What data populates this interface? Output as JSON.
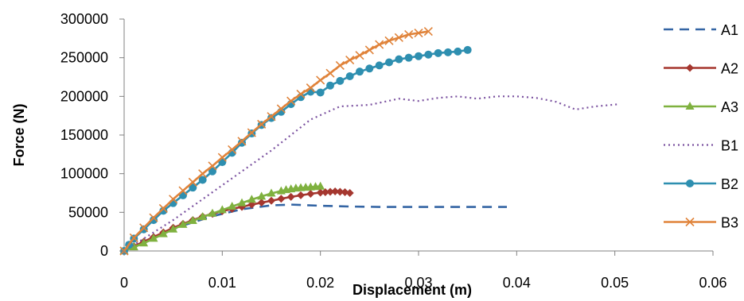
{
  "chart_data": {
    "type": "line",
    "title": "",
    "xlabel": "Displacement (m)",
    "ylabel": "Force (N)",
    "xlim": [
      0,
      0.06
    ],
    "ylim": [
      0,
      300000
    ],
    "x_ticks": [
      0,
      0.01,
      0.02,
      0.03,
      0.04,
      0.05,
      0.06
    ],
    "x_tick_labels": [
      "0",
      "0.01",
      "0.02",
      "0.03",
      "0.04",
      "0.05",
      "0.06"
    ],
    "y_ticks": [
      0,
      50000,
      100000,
      150000,
      200000,
      250000,
      300000
    ],
    "y_tick_labels": [
      "0",
      "50000",
      "100000",
      "150000",
      "200000",
      "250000",
      "300000"
    ],
    "grid": false,
    "legend_position": "right",
    "series": [
      {
        "name": "A1",
        "color": "#3465a4",
        "dash": "dashed",
        "marker": "none",
        "x": [
          0,
          0.003,
          0.006,
          0.009,
          0.012,
          0.015,
          0.017,
          0.02,
          0.023,
          0.026,
          0.03,
          0.035,
          0.039
        ],
        "y": [
          0,
          18000,
          33000,
          45000,
          54000,
          59000,
          60000,
          58500,
          57500,
          57000,
          57000,
          57000,
          57000
        ]
      },
      {
        "name": "A2",
        "color": "#a5372f",
        "dash": "solid",
        "marker": "diamond",
        "x": [
          0,
          0.001,
          0.002,
          0.003,
          0.004,
          0.005,
          0.006,
          0.007,
          0.008,
          0.009,
          0.01,
          0.011,
          0.012,
          0.013,
          0.014,
          0.015,
          0.016,
          0.017,
          0.018,
          0.019,
          0.02,
          0.0205,
          0.021,
          0.0215,
          0.022,
          0.0225,
          0.023
        ],
        "y": [
          0,
          6000,
          12000,
          18000,
          24000,
          30000,
          35000,
          40000,
          44500,
          48000,
          51500,
          54500,
          57000,
          60000,
          62500,
          65000,
          67500,
          70000,
          72000,
          74000,
          75500,
          76000,
          76500,
          77000,
          76500,
          76000,
          75000
        ]
      },
      {
        "name": "A3",
        "color": "#7fb13f",
        "dash": "solid",
        "marker": "triangle",
        "x": [
          0,
          0.001,
          0.002,
          0.003,
          0.004,
          0.005,
          0.006,
          0.007,
          0.008,
          0.009,
          0.01,
          0.011,
          0.012,
          0.013,
          0.014,
          0.015,
          0.016,
          0.0165,
          0.017,
          0.0175,
          0.018,
          0.0185,
          0.019,
          0.0195,
          0.02
        ],
        "y": [
          0,
          5000,
          10000,
          16000,
          22000,
          28000,
          34000,
          39000,
          44000,
          48500,
          53000,
          57500,
          62000,
          66500,
          70500,
          74500,
          77500,
          79000,
          80000,
          81000,
          81500,
          82000,
          82500,
          83000,
          83500
        ]
      },
      {
        "name": "B1",
        "color": "#7b52a0",
        "dash": "dotted",
        "marker": "none",
        "x": [
          0,
          0.005,
          0.01,
          0.015,
          0.019,
          0.022,
          0.025,
          0.028,
          0.03,
          0.032,
          0.034,
          0.036,
          0.038,
          0.04,
          0.042,
          0.044,
          0.046,
          0.048,
          0.0505
        ],
        "y": [
          0,
          40000,
          85000,
          130000,
          170000,
          187000,
          189000,
          197000,
          194000,
          198000,
          200000,
          197000,
          200000,
          200000,
          198000,
          193000,
          183000,
          187000,
          190000
        ]
      },
      {
        "name": "B2",
        "color": "#2e8fb0",
        "dash": "solid",
        "marker": "circle",
        "x": [
          0,
          0.0005,
          0.001,
          0.002,
          0.003,
          0.004,
          0.005,
          0.006,
          0.007,
          0.008,
          0.009,
          0.01,
          0.011,
          0.012,
          0.013,
          0.014,
          0.015,
          0.016,
          0.017,
          0.018,
          0.019,
          0.02,
          0.021,
          0.022,
          0.023,
          0.024,
          0.025,
          0.026,
          0.027,
          0.028,
          0.029,
          0.03,
          0.031,
          0.032,
          0.033,
          0.034,
          0.035
        ],
        "y": [
          0,
          8000,
          16000,
          28000,
          40000,
          52000,
          62000,
          72000,
          82000,
          92000,
          103000,
          115000,
          127000,
          140000,
          152000,
          163000,
          172000,
          180000,
          190000,
          199000,
          206000,
          205000,
          214000,
          220000,
          226000,
          232000,
          236000,
          240000,
          244000,
          248000,
          250000,
          252000,
          254000,
          256000,
          257000,
          258000,
          260000
        ]
      },
      {
        "name": "B3",
        "color": "#e0833a",
        "dash": "solid",
        "marker": "x",
        "x": [
          0,
          0.001,
          0.002,
          0.003,
          0.004,
          0.005,
          0.006,
          0.007,
          0.008,
          0.009,
          0.01,
          0.011,
          0.012,
          0.013,
          0.014,
          0.015,
          0.016,
          0.017,
          0.018,
          0.019,
          0.02,
          0.021,
          0.022,
          0.023,
          0.024,
          0.025,
          0.026,
          0.027,
          0.028,
          0.029,
          0.03,
          0.031
        ],
        "y": [
          0,
          17000,
          30000,
          43000,
          55000,
          67000,
          78000,
          89000,
          100000,
          110000,
          121000,
          131000,
          142000,
          153000,
          164000,
          174000,
          184000,
          194000,
          203000,
          211000,
          221000,
          230000,
          240000,
          247000,
          253000,
          260000,
          267000,
          272000,
          276000,
          280000,
          282000,
          284000
        ]
      }
    ]
  }
}
